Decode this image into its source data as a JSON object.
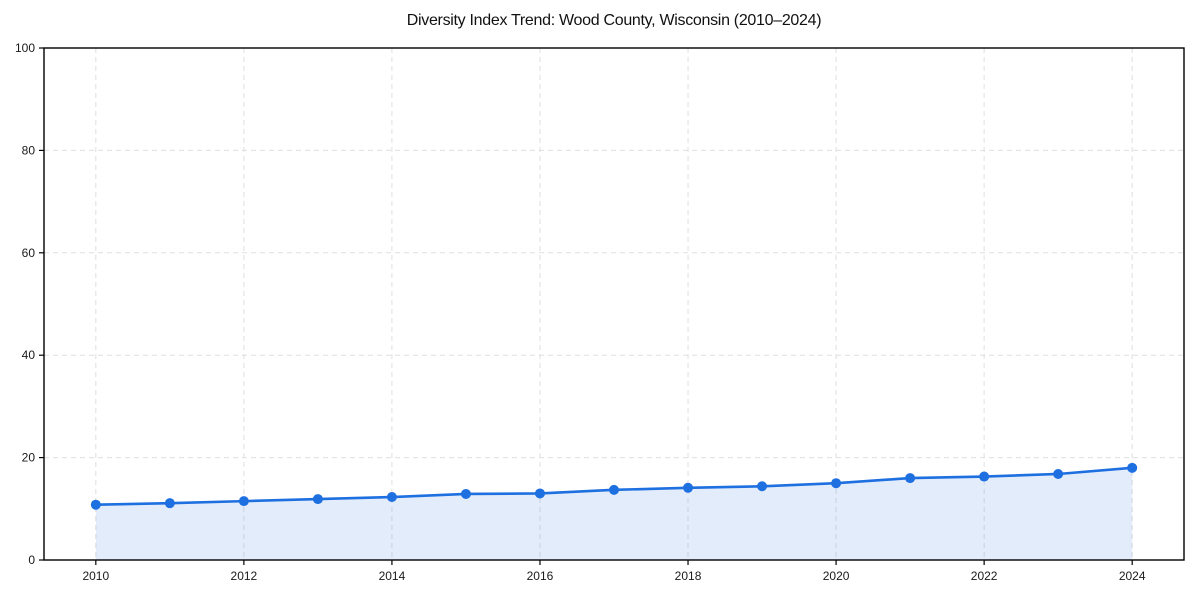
{
  "chart_data": {
    "type": "line",
    "title": "Diversity Index Trend: Wood County, Wisconsin (2010–2024)",
    "xlabel": "",
    "ylabel": "",
    "x": [
      2010,
      2011,
      2012,
      2013,
      2014,
      2015,
      2016,
      2017,
      2018,
      2019,
      2020,
      2021,
      2022,
      2023,
      2024
    ],
    "values": [
      10.8,
      11.1,
      11.5,
      11.9,
      12.3,
      12.9,
      13.0,
      13.7,
      14.1,
      14.4,
      15.0,
      16.0,
      16.3,
      16.8,
      18.0
    ],
    "xlim": [
      2009.3,
      2024.7
    ],
    "ylim": [
      0,
      100
    ],
    "xticks": [
      2010,
      2012,
      2014,
      2016,
      2018,
      2020,
      2022,
      2024
    ],
    "yticks": [
      0,
      20,
      40,
      60,
      80,
      100
    ],
    "grid": "dashed gridlines on both axes at tick positions",
    "legend": "none",
    "area_fill_under_line": true,
    "marker": "circle",
    "colors": {
      "line": "#1e6fe0",
      "marker": "#1e6fe0",
      "fill": "rgba(30, 111, 224, 0.13)",
      "grid": "#dfdfdf",
      "axis": "#000000",
      "tick_labels": "#1a1a1a",
      "title": "#111111",
      "background": "#ffffff"
    }
  }
}
